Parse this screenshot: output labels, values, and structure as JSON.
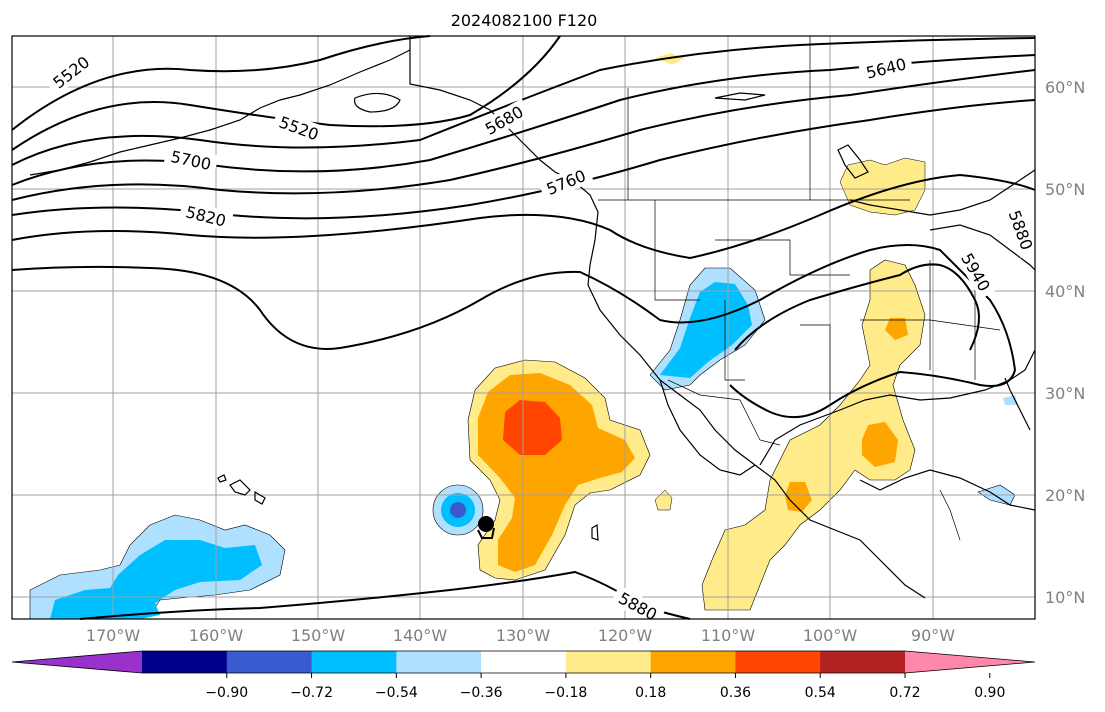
{
  "title": "2024082100 F120",
  "map": {
    "latitude_labels": [
      "60°N",
      "50°N",
      "40°N",
      "30°N",
      "20°N",
      "10°N"
    ],
    "longitude_labels": [
      "170°W",
      "160°W",
      "150°W",
      "140°W",
      "130°W",
      "120°W",
      "110°W",
      "100°W",
      "90°W"
    ],
    "contour_labels": [
      "5520",
      "5520",
      "5640",
      "5680",
      "5700",
      "5760",
      "5820",
      "5880",
      "5880",
      "5940"
    ],
    "contour_color": "#000000",
    "gridlines": true
  },
  "colorbar": {
    "tick_labels": [
      "−0.90",
      "−0.72",
      "−0.54",
      "−0.36",
      "−0.18",
      "0.18",
      "0.36",
      "0.54",
      "0.72",
      "0.90"
    ],
    "colors": [
      "#9932cc",
      "#00008b",
      "#3a5bd0",
      "#00bfff",
      "#b0e0ff",
      "#ffffff",
      "#ffeb8a",
      "#ffa500",
      "#ff4500",
      "#b22222",
      "#ff88aa"
    ],
    "extend": "both"
  }
}
